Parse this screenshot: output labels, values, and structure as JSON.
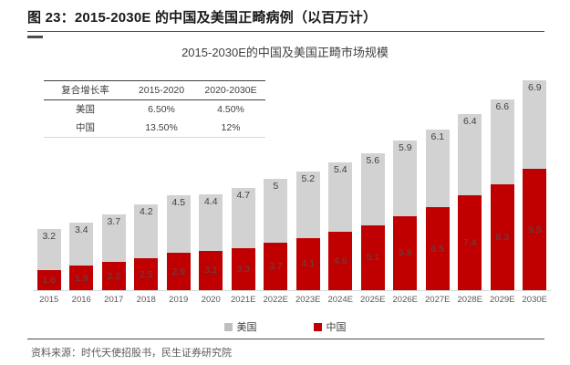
{
  "page": {
    "title": "图 23：2015-2030E 的中国及美国正畸病例（以百万计）",
    "source": "资料来源：时代天使招股书，民生证券研究院"
  },
  "table": {
    "headers": [
      "复合增长率",
      "2015-2020",
      "2020-2030E"
    ],
    "rows": [
      [
        "美国",
        "6.50%",
        "4.50%"
      ],
      [
        "中国",
        "13.50%",
        "12%"
      ]
    ]
  },
  "chart_data": {
    "type": "bar",
    "stacked": true,
    "title": "2015-2030E的中国及美国正畸市场规模",
    "unit": "百万例",
    "categories": [
      "2015",
      "2016",
      "2017",
      "2018",
      "2019",
      "2020",
      "2021E",
      "2022E",
      "2023E",
      "2024E",
      "2025E",
      "2026E",
      "2027E",
      "2028E",
      "2029E",
      "2030E"
    ],
    "series": [
      {
        "name": "中国",
        "color": "#c00000",
        "stack_position": "bottom",
        "label_placement": "center",
        "labels": [
          "1.6",
          "1.9",
          "2.2",
          "2.5",
          "2.9",
          "3.1",
          "3.3",
          "3.7",
          "4.1",
          "4.6",
          "5.1",
          "5.8",
          "6.5",
          "7.4",
          "8.3",
          "9.5"
        ],
        "values": [
          1.6,
          1.9,
          2.2,
          2.5,
          2.9,
          3.1,
          3.3,
          3.7,
          4.1,
          4.6,
          5.1,
          5.8,
          6.5,
          7.4,
          8.3,
          9.5
        ]
      },
      {
        "name": "美国",
        "color": "#d2d2d2",
        "stack_position": "top",
        "label_placement": "inside-end",
        "labels": [
          "3.2",
          "3.4",
          "3.7",
          "4.2",
          "4.5",
          "4.4",
          "4.7",
          "5",
          "5.2",
          "5.4",
          "5.6",
          "5.9",
          "6.1",
          "6.4",
          "6.6",
          "6.9"
        ],
        "values": [
          3.2,
          3.4,
          3.7,
          4.2,
          4.5,
          4.4,
          4.7,
          5.0,
          5.2,
          5.4,
          5.6,
          5.9,
          6.1,
          6.4,
          6.6,
          6.9
        ]
      }
    ],
    "legend": [
      {
        "label": "美国",
        "color": "#bfbfbf"
      },
      {
        "label": "中国",
        "color": "#c00000"
      }
    ],
    "legend_position": "bottom",
    "grid": false,
    "y_axis_visible": false
  }
}
